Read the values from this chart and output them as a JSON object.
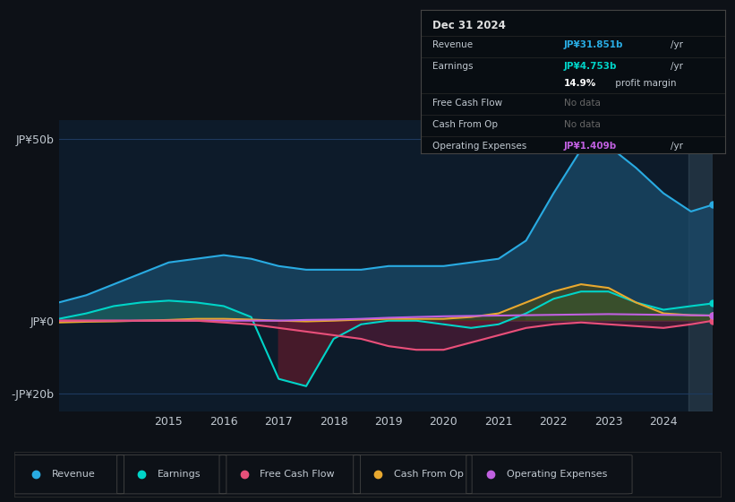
{
  "bg_color": "#0d1117",
  "plot_bg_color": "#0d1b2a",
  "grid_color": "#1e3a5f",
  "text_color": "#c0c8d0",
  "title_color": "#ffffff",
  "years": [
    2013.0,
    2013.5,
    2014.0,
    2014.5,
    2015.0,
    2015.5,
    2016.0,
    2016.5,
    2017.0,
    2017.5,
    2018.0,
    2018.5,
    2019.0,
    2019.5,
    2020.0,
    2020.5,
    2021.0,
    2021.5,
    2022.0,
    2022.5,
    2023.0,
    2023.5,
    2024.0,
    2024.5,
    2024.9
  ],
  "revenue": [
    5,
    7,
    10,
    13,
    16,
    17,
    18,
    17,
    15,
    14,
    14,
    14,
    15,
    15,
    15,
    16,
    17,
    22,
    35,
    47,
    48,
    42,
    35,
    30,
    31.851
  ],
  "earnings": [
    0.5,
    2,
    4,
    5,
    5.5,
    5,
    4,
    1,
    -16,
    -18,
    -5,
    -1,
    0,
    0,
    -1,
    -2,
    -1,
    2,
    6,
    8,
    8,
    5,
    3,
    4,
    4.753
  ],
  "free_cash_flow": [
    0,
    0,
    0,
    0,
    0,
    0,
    -0.5,
    -1,
    -2,
    -3,
    -4,
    -5,
    -7,
    -8,
    -8,
    -6,
    -4,
    -2,
    -1,
    -0.5,
    -1,
    -1.5,
    -2,
    -1,
    0
  ],
  "cash_from_op": [
    -0.5,
    -0.3,
    -0.2,
    0,
    0.2,
    0.5,
    0.5,
    0.3,
    0,
    -0.2,
    0,
    0.3,
    0.5,
    0.5,
    0.5,
    1,
    2,
    5,
    8,
    10,
    9,
    5,
    2,
    1.5,
    1.409
  ],
  "operating_expenses": [
    0,
    0,
    0,
    0,
    0,
    0,
    0,
    0,
    0,
    0.2,
    0.3,
    0.5,
    0.8,
    1,
    1.2,
    1.3,
    1.4,
    1.5,
    1.6,
    1.7,
    1.8,
    1.7,
    1.6,
    1.5,
    1.409
  ],
  "revenue_color": "#29abe2",
  "earnings_color": "#00d4c8",
  "fcf_color": "#e8507a",
  "cashop_color": "#e8a830",
  "opex_color": "#c060e0",
  "revenue_fill": "#1a4a6a",
  "earnings_fill_pos": "#1a5a5a",
  "earnings_fill_neg": "#4a1a2a",
  "fcf_fill": "#6a1a3a",
  "cashop_fill": "#5a4a00",
  "ylim_min": -25,
  "ylim_max": 55,
  "yticks": [
    -20,
    0,
    50
  ],
  "ytick_labels": [
    "-JP¥20b",
    "JP¥0",
    "JP¥50b"
  ],
  "xtick_years": [
    2015,
    2016,
    2017,
    2018,
    2019,
    2020,
    2021,
    2022,
    2023,
    2024
  ],
  "info_box": {
    "date": "Dec 31 2024",
    "revenue_val": "JP¥31.851b",
    "earnings_val": "JP¥4.753b",
    "profit_margin": "14.9%",
    "fcf_val": "No data",
    "cashop_val": "No data",
    "opex_val": "JP¥1.409b"
  },
  "legend_items": [
    "Revenue",
    "Earnings",
    "Free Cash Flow",
    "Cash From Op",
    "Operating Expenses"
  ]
}
